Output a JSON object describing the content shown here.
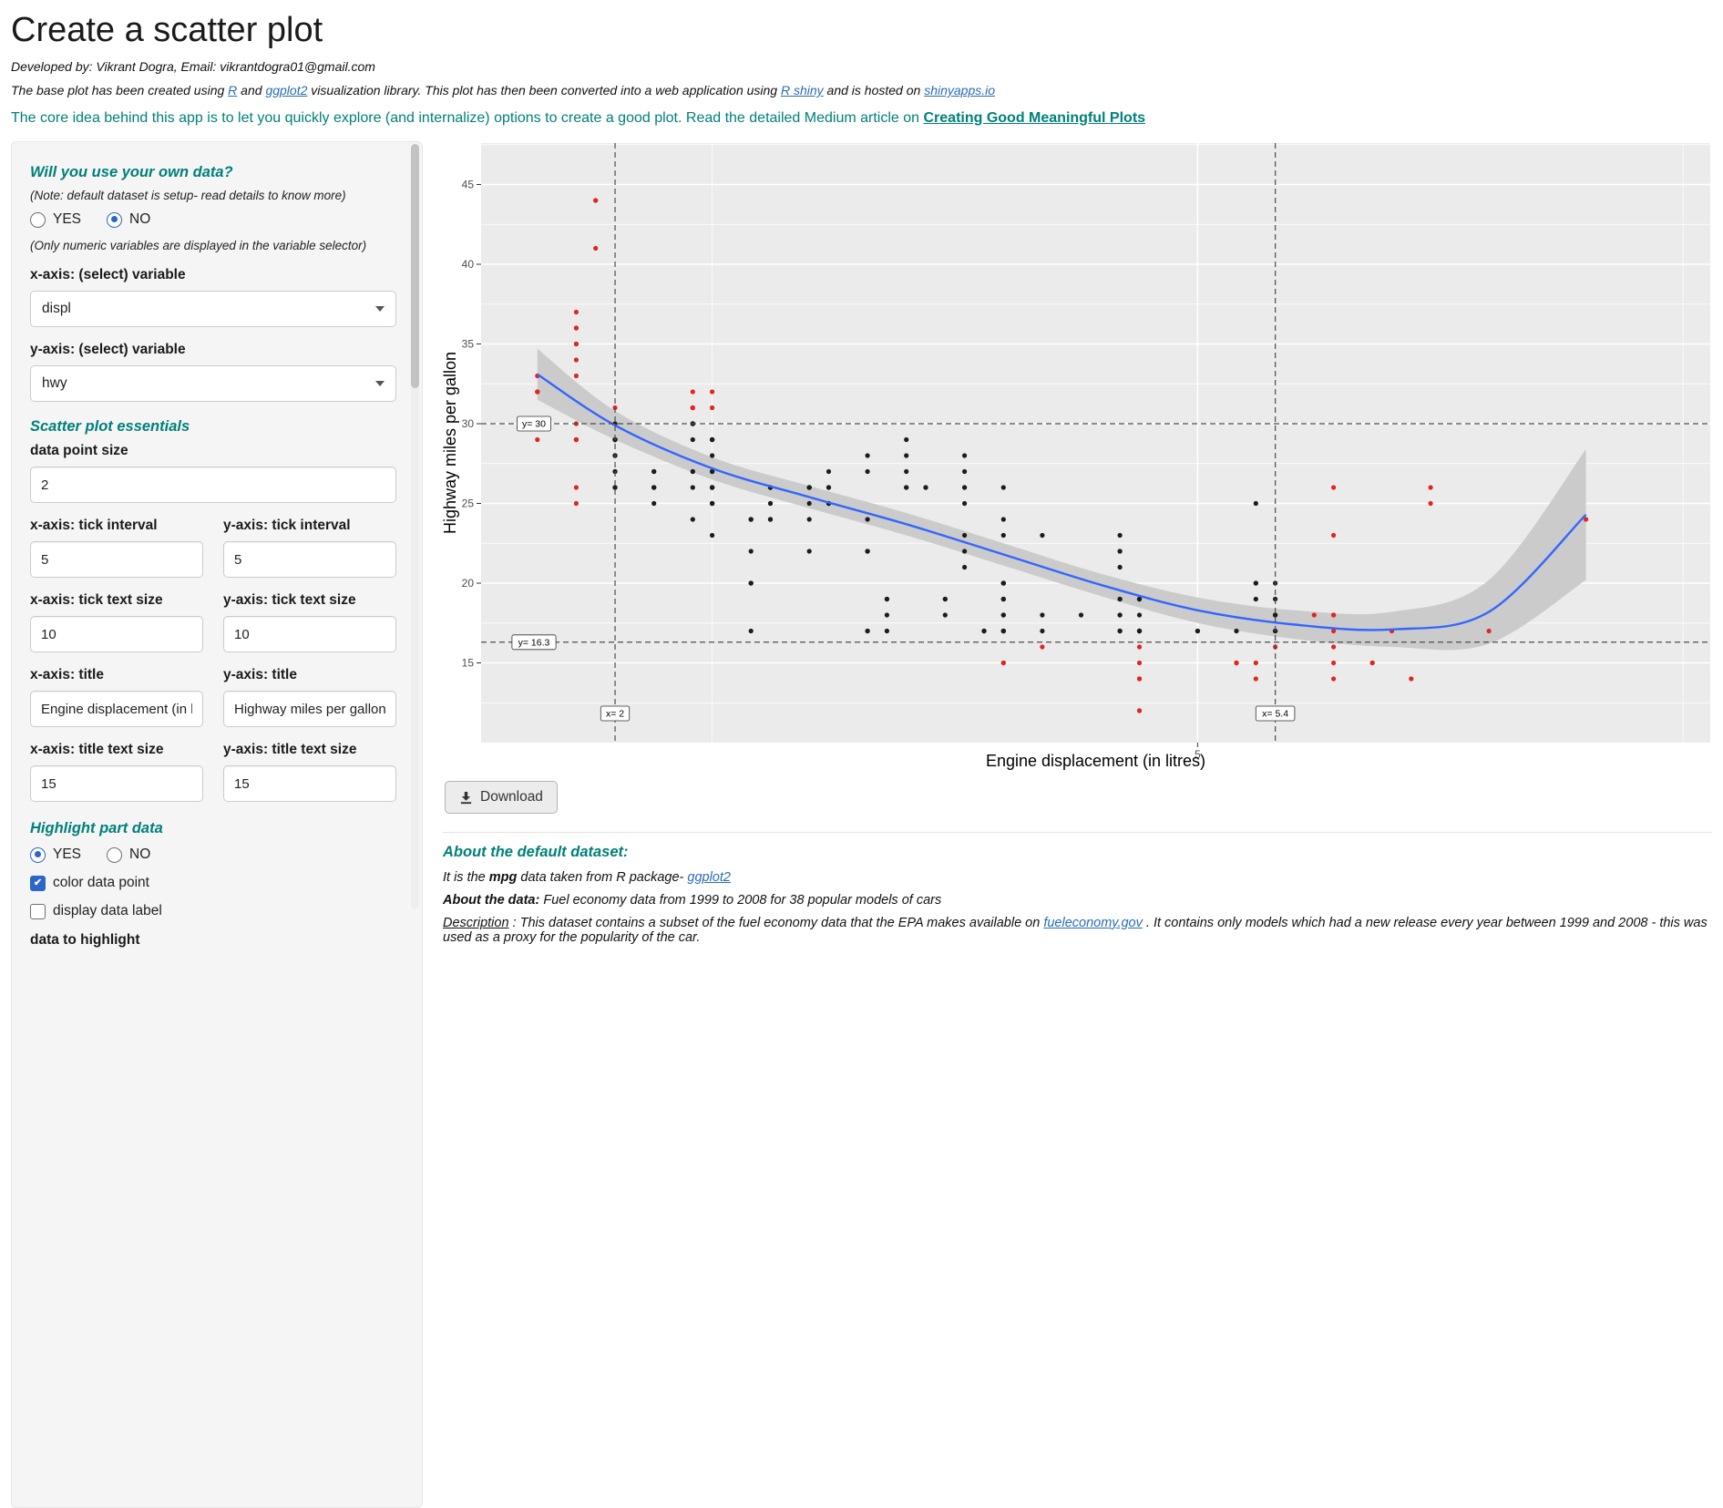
{
  "header": {
    "title": "Create a scatter plot",
    "developed_by": "Developed by: Vikrant Dogra, Email: vikrantdogra01@gmail.com",
    "intro": {
      "t1": "The base plot has been created using ",
      "l1": "R",
      "t2": " and ",
      "l2": "ggplot2",
      "t3": " visualization library. This plot has then been converted into a web application using ",
      "l3": "R shiny",
      "t4": " and is hosted on ",
      "l4": "shinyapps.io"
    },
    "core_idea": {
      "text": "The core idea behind this app is to let you quickly explore (and internalize) options to create a good plot. Read the detailed Medium article on ",
      "link": "Creating Good Meaningful Plots"
    }
  },
  "sidebar": {
    "own_data_heading": "Will you use your own data?",
    "own_data_note": "(Note: default dataset is setup- read details to know more)",
    "yes_label": "YES",
    "no_label": "NO",
    "own_data_selected": "NO",
    "numeric_note": "(Only numeric variables are displayed in the variable selector)",
    "x_var_label": "x-axis: (select) variable",
    "x_var_value": "displ",
    "y_var_label": "y-axis: (select) variable",
    "y_var_value": "hwy",
    "essentials_heading": "Scatter plot essentials",
    "point_size_label": "data point size",
    "point_size_value": "2",
    "x_tick_interval_label": "x-axis: tick interval",
    "y_tick_interval_label": "y-axis: tick interval",
    "x_tick_interval_value": "5",
    "y_tick_interval_value": "5",
    "x_tick_size_label": "x-axis: tick text size",
    "y_tick_size_label": "y-axis: tick text size",
    "x_tick_size_value": "10",
    "y_tick_size_value": "10",
    "x_title_label": "x-axis: title",
    "y_title_label": "y-axis: title",
    "x_title_value": "Engine displacement (in litres)",
    "y_title_value": "Highway miles per gallon",
    "x_title_size_label": "x-axis: title text size",
    "y_title_size_label": "y-axis: title text size",
    "x_title_size_value": "15",
    "y_title_size_value": "15",
    "highlight_heading": "Highlight part data",
    "highlight_selected": "YES",
    "color_point_label": "color data point",
    "color_point_checked": true,
    "display_label_label": "display data label",
    "display_label_checked": false,
    "data_highlight_label": "data to highlight"
  },
  "download_label": "Download",
  "about": {
    "heading": "About the default dataset:",
    "line1_pre": "It is the ",
    "line1_bold": "mpg",
    "line1_mid": " data taken from R package- ",
    "line1_link": "ggplot2",
    "line2_bold": "About the data:",
    "line2_text": " Fuel economy data from 1999 to 2008 for 38 popular models of cars",
    "line3_label": "Description",
    "line3_pre": " : This dataset contains a subset of the fuel economy data that the EPA makes available on ",
    "line3_link": "fueleconomy.gov",
    "line3_post": " . It contains only models which had a new release every year between 1999 and 2008 - this was used as a proxy for the popularity of the car."
  },
  "chart_data": {
    "type": "scatter",
    "xlabel": "Engine displacement (in litres)",
    "ylabel": "Highway miles per gallon",
    "x_series_name": "displ",
    "y_series_name": "hwy",
    "xlim": [
      1.31,
      7.64
    ],
    "ylim": [
      10,
      47.6
    ],
    "x_ticks": [
      5
    ],
    "y_ticks": [
      15,
      20,
      25,
      30,
      35,
      40,
      45
    ],
    "x_minor": [
      2.5,
      7.5
    ],
    "y_minor": [
      12.5,
      17.5,
      22.5,
      27.5,
      32.5,
      37.5,
      42.5,
      47.5
    ],
    "grid": true,
    "legend": "none",
    "points": {
      "displ": [
        1.8,
        1.8,
        2,
        2,
        2.8,
        2.8,
        3.1,
        1.8,
        1.8,
        2,
        2,
        2.8,
        2.8,
        3.1,
        3.1,
        2.8,
        3.1,
        4.2,
        5.3,
        5.3,
        5.3,
        5.7,
        6,
        5.7,
        5.7,
        6.2,
        6.2,
        7,
        5.3,
        5.3,
        5.7,
        6.5,
        2.4,
        2.4,
        3.1,
        3.5,
        3.6,
        2.4,
        3,
        3.3,
        3.3,
        3.3,
        3.3,
        3.3,
        3.8,
        3.8,
        3.8,
        4,
        3.7,
        3.7,
        3.9,
        3.9,
        4.7,
        4.7,
        4.7,
        5.2,
        5.2,
        3.9,
        4.7,
        4.7,
        4.7,
        4.7,
        4.7,
        5.2,
        5.7,
        5.9,
        4.7,
        4.7,
        4.7,
        4.7,
        4.7,
        5.2,
        5.7,
        5.9,
        4.6,
        5.4,
        5.4,
        4,
        4,
        4,
        4,
        4.6,
        5,
        4.2,
        4.2,
        4.6,
        4.6,
        4.6,
        5.4,
        5.4,
        3.8,
        3.8,
        4,
        4,
        4.6,
        4.6,
        4.6,
        4.6,
        5.4,
        1.6,
        1.6,
        1.6,
        1.6,
        1.6,
        1.8,
        1.8,
        1.8,
        2,
        2.4,
        2.4,
        2.4,
        2.4,
        2.5,
        2.5,
        3.3,
        2,
        2,
        2,
        2,
        2.7,
        2.7,
        2.7,
        3,
        3.7,
        4,
        4,
        4,
        4,
        4.7,
        4.7,
        4.7,
        5.7,
        6.1,
        4,
        4.2,
        4.4,
        4.6,
        5.4,
        5.4,
        5.4,
        4,
        4,
        4.6,
        5,
        2.4,
        2.4,
        2.5,
        2.5,
        3.5,
        3.5,
        3,
        3,
        3.5,
        3.3,
        4,
        5.6,
        3.1,
        3.8,
        3.8,
        3.8,
        5.3,
        2.5,
        2.5,
        2.5,
        2.5,
        2.5,
        2.5,
        2.2,
        2.2,
        2.5,
        2.5,
        2.5,
        2.5,
        2.5,
        2.5,
        2.7,
        2.7,
        3.4,
        3.4,
        4,
        4.7,
        2.2,
        2.2,
        2.4,
        2.4,
        3,
        3,
        3.5,
        2.2,
        2.2,
        2.4,
        2.4,
        3,
        3.3,
        1.8,
        1.8,
        1.8,
        1.8,
        1.8,
        4.7,
        5.7,
        2.7,
        2.7,
        2.7,
        3.4,
        3.4,
        4,
        4,
        2,
        2,
        2,
        2,
        2.8,
        1.9,
        2,
        2,
        2,
        2,
        2.5,
        2.5,
        2.8,
        1.9,
        1.9,
        2,
        2,
        2.5,
        2.5,
        1.8,
        1.8,
        2,
        2,
        2.8,
        2.8,
        3.6
      ],
      "hwy": [
        29,
        29,
        31,
        30,
        26,
        26,
        27,
        26,
        25,
        28,
        27,
        25,
        25,
        25,
        25,
        24,
        25,
        23,
        20,
        15,
        20,
        17,
        17,
        26,
        23,
        26,
        25,
        24,
        14,
        19,
        14,
        17,
        27,
        30,
        26,
        29,
        26,
        24,
        24,
        22,
        22,
        24,
        22,
        17,
        22,
        21,
        23,
        23,
        19,
        18,
        17,
        17,
        19,
        19,
        12,
        17,
        15,
        17,
        17,
        12,
        17,
        16,
        18,
        15,
        16,
        15,
        17,
        15,
        17,
        17,
        19,
        15,
        18,
        15,
        17,
        17,
        18,
        17,
        19,
        17,
        19,
        19,
        17,
        17,
        16,
        18,
        18,
        17,
        19,
        17,
        26,
        25,
        26,
        24,
        21,
        22,
        23,
        22,
        20,
        33,
        32,
        32,
        29,
        32,
        34,
        36,
        36,
        29,
        26,
        27,
        30,
        31,
        26,
        29,
        28,
        26,
        29,
        28,
        27,
        24,
        24,
        24,
        22,
        19,
        20,
        17,
        15,
        18,
        14,
        19,
        14,
        15,
        14,
        15,
        18,
        18,
        17,
        16,
        18,
        18,
        17,
        19,
        19,
        17,
        29,
        32,
        31,
        32,
        27,
        26,
        26,
        25,
        26,
        17,
        20,
        18,
        26,
        26,
        27,
        28,
        25,
        26,
        25,
        27,
        25,
        26,
        23,
        26,
        25,
        26,
        25,
        27,
        25,
        27,
        26,
        20,
        20,
        19,
        17,
        20,
        17,
        26,
        27,
        30,
        31,
        26,
        26,
        28,
        26,
        27,
        30,
        31,
        26,
        27,
        30,
        33,
        35,
        37,
        35,
        17,
        18,
        20,
        22,
        17,
        19,
        18,
        20,
        18,
        29,
        26,
        29,
        29,
        24,
        44,
        29,
        26,
        29,
        29,
        29,
        29,
        24,
        44,
        41,
        29,
        26,
        28,
        29,
        29,
        29,
        28,
        29,
        26,
        26,
        26
      ]
    },
    "highlight_rule": {
      "x_min": 2,
      "x_max": 5.4,
      "y_min": 16.3,
      "y_max": 30
    },
    "ref_lines": {
      "h": [
        {
          "value": 30,
          "label": "y= 30"
        },
        {
          "value": 16.3,
          "label": "y= 16.3"
        }
      ],
      "v": [
        {
          "value": 2,
          "label": "x= 2"
        },
        {
          "value": 5.4,
          "label": "x= 5.4"
        }
      ]
    },
    "smooth": {
      "x": [
        1.6,
        2.0,
        2.5,
        3.0,
        3.5,
        4.0,
        4.5,
        5.0,
        5.5,
        6.0,
        6.5,
        7.0
      ],
      "y": [
        33.1,
        29.9,
        27.2,
        25.4,
        23.7,
        21.8,
        19.9,
        18.3,
        17.4,
        17.1,
        18.2,
        24.3
      ],
      "ymin": [
        31.5,
        29.0,
        26.5,
        24.7,
        23.0,
        21.1,
        19.2,
        17.5,
        16.5,
        16.0,
        16.2,
        20.2
      ],
      "ymax": [
        34.7,
        30.8,
        27.9,
        26.1,
        24.4,
        22.5,
        20.6,
        19.1,
        18.3,
        18.2,
        20.2,
        28.4
      ]
    },
    "colors": {
      "panel_bg": "#ebebeb",
      "grid": "#ffffff",
      "point": "#1c1c1c",
      "highlight_point": "#e32424",
      "smooth_line": "#3366ff",
      "ci_band": "#cbcbcb",
      "ref_line": "#4d4d4d",
      "tick_text": "#4d4d4d",
      "axis_title": "#000000"
    }
  }
}
